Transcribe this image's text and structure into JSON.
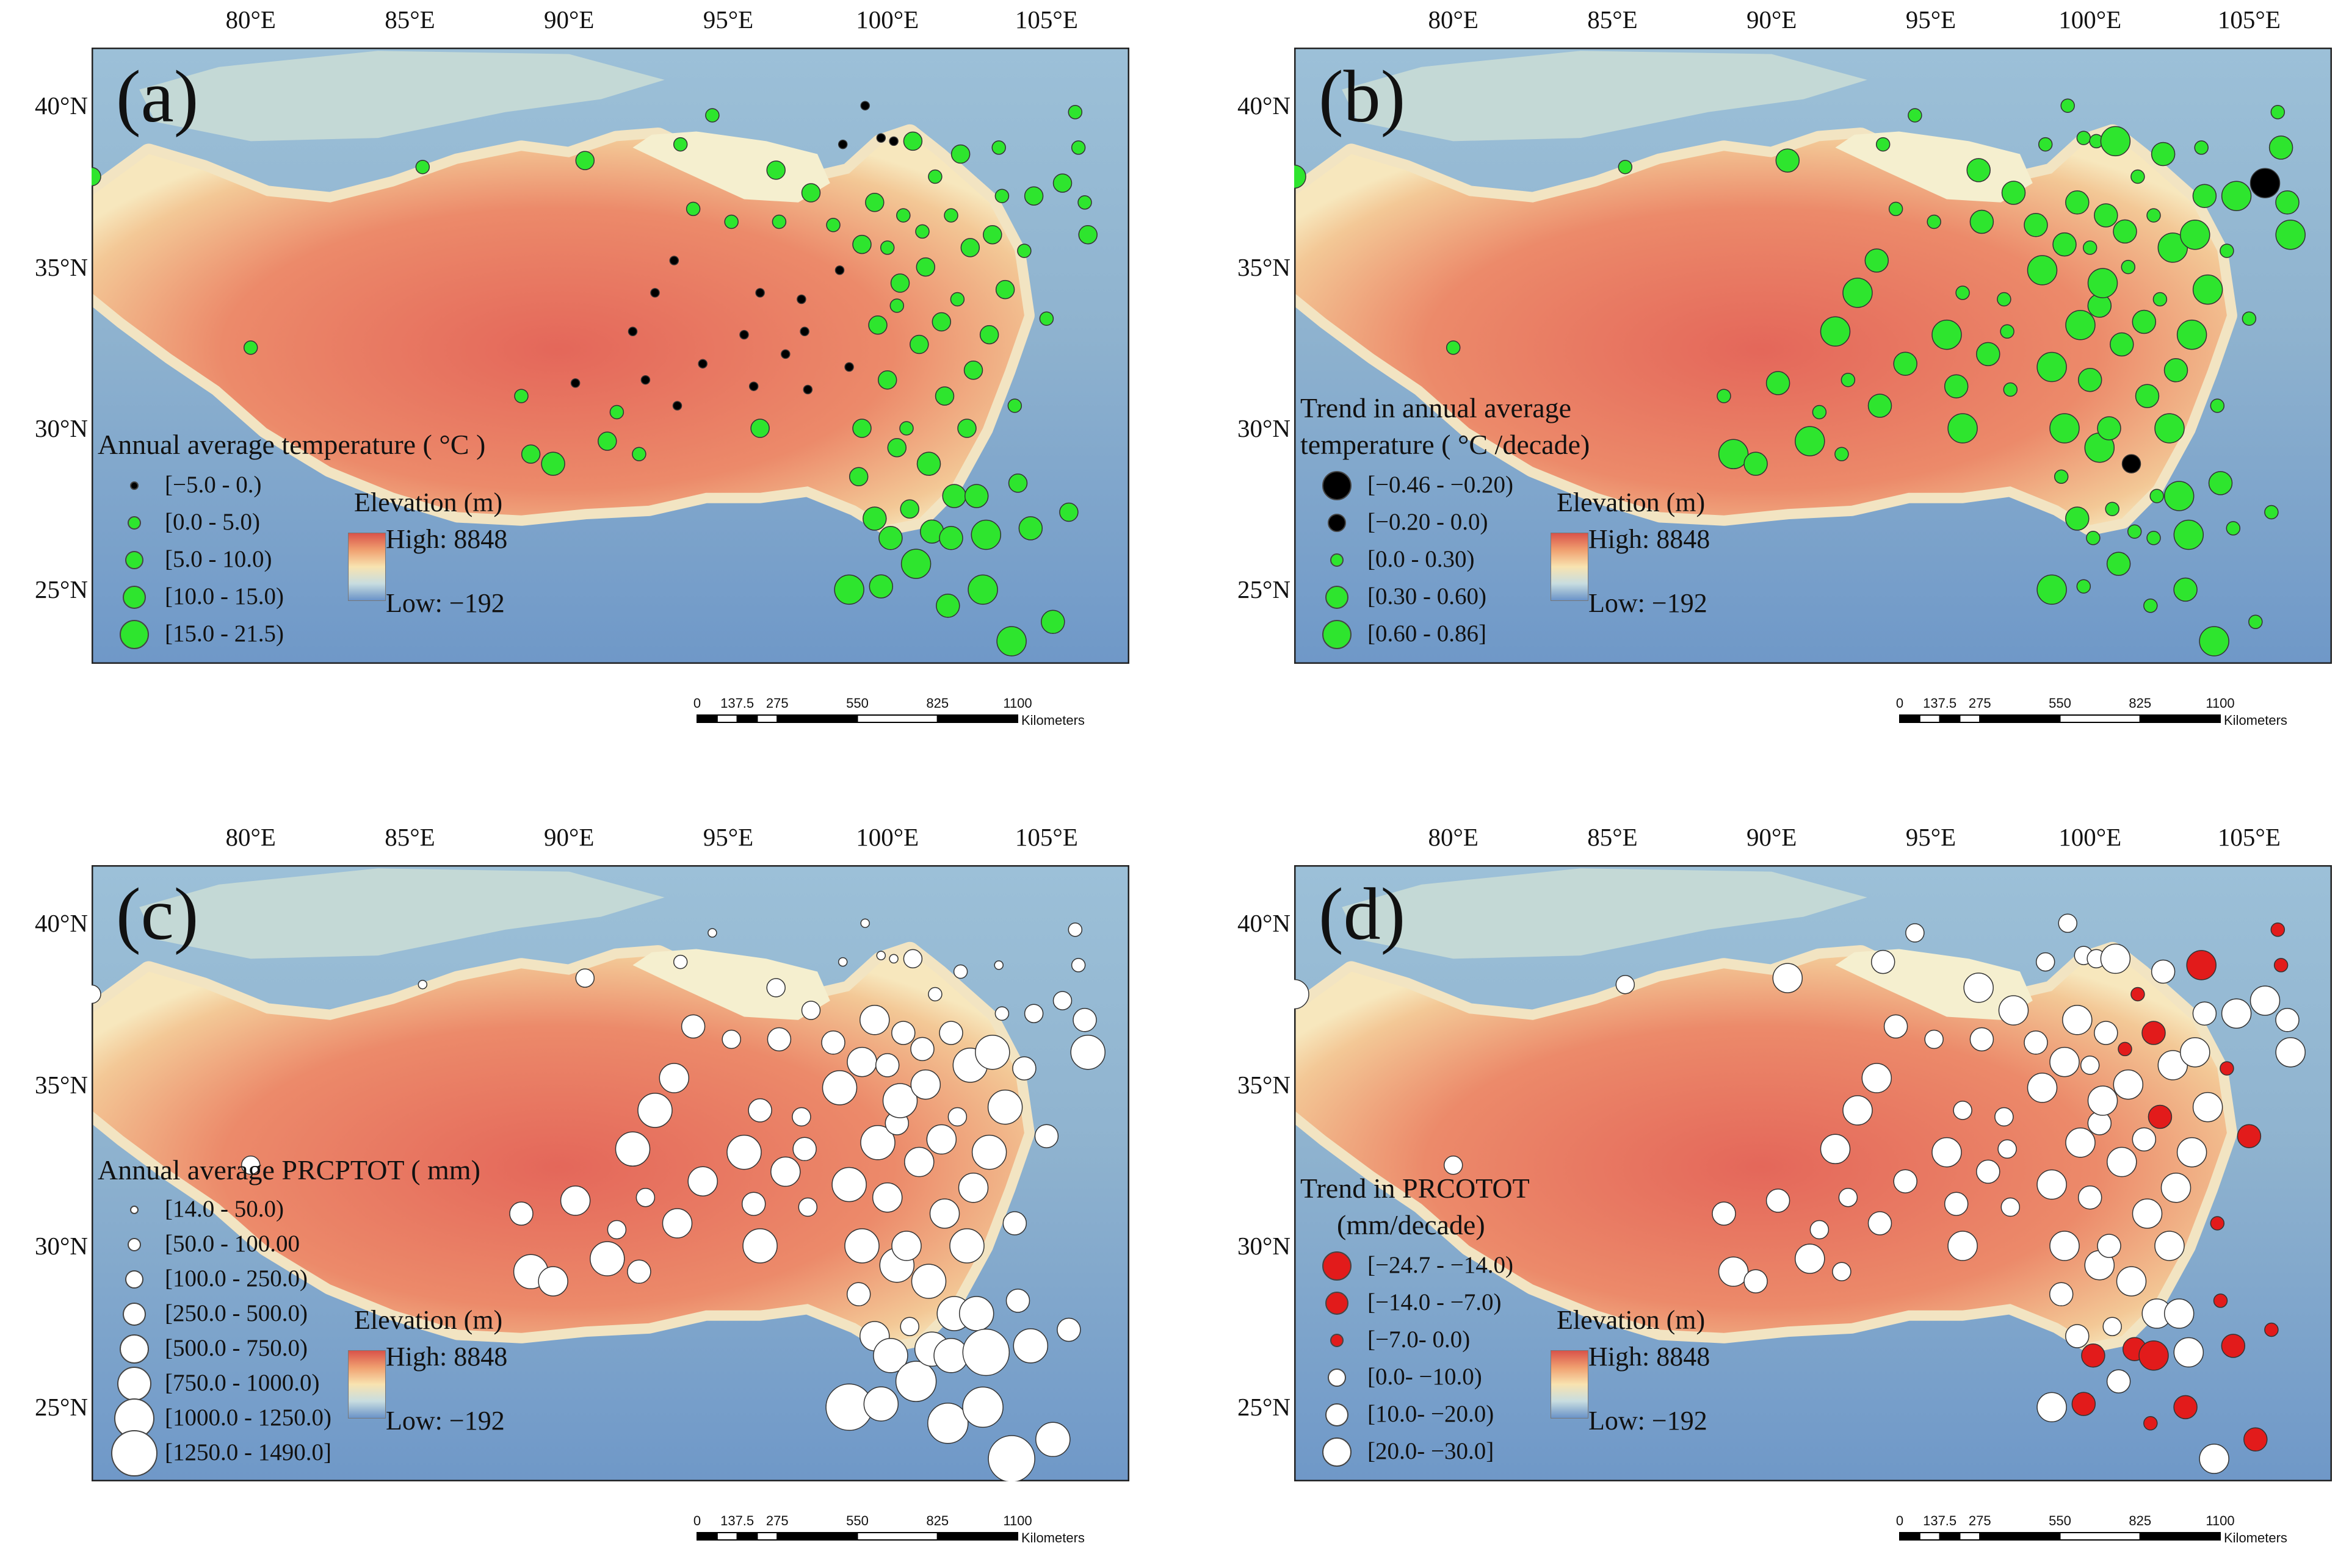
{
  "colors": {
    "green": "#2ee52e",
    "black": "#000000",
    "white": "#ffffff",
    "red": "#e21b1b",
    "elev_high": "#d9534a",
    "elev_low": "#6a93c8"
  },
  "axes": {
    "lon_labels": [
      "80°E",
      "85°E",
      "90°E",
      "95°E",
      "100°E",
      "105°E"
    ],
    "lat_labels": [
      "40°N",
      "35°N",
      "30°N",
      "25°N"
    ]
  },
  "elevation_legend": {
    "title": "Elevation (m)",
    "high": "High: 8848",
    "low": "Low: −192"
  },
  "scalebar": {
    "ticks": [
      "0",
      "137.5",
      "275",
      "550",
      "825",
      "1100"
    ],
    "unit": "Kilometers"
  },
  "panels": [
    {
      "id": "a",
      "label": "(a)",
      "legend_title_lines": [
        "Annual  average temperature ( °C )"
      ],
      "legend_items": [
        {
          "text": "[−5.0 - 0.)",
          "color": "#000000",
          "size": 1
        },
        {
          "text": "[0.0 - 5.0)",
          "color": "#2ee52e",
          "size": 2
        },
        {
          "text": "[5.0 - 10.0)",
          "color": "#2ee52e",
          "size": 3
        },
        {
          "text": "[10.0 - 15.0)",
          "color": "#2ee52e",
          "size": 4
        },
        {
          "text": "[15.0 - 21.5)",
          "color": "#2ee52e",
          "size": 5
        }
      ]
    },
    {
      "id": "b",
      "label": "(b)",
      "legend_title_lines": [
        "Trend  in annual  average",
        "temperature ( °C /decade)"
      ],
      "legend_items": [
        {
          "text": "[−0.46 - −0.20)",
          "color": "#000000",
          "size": 5
        },
        {
          "text": "[−0.20 - 0.0)",
          "color": "#000000",
          "size": 3
        },
        {
          "text": "[0.0 - 0.30)",
          "color": "#2ee52e",
          "size": 2
        },
        {
          "text": "[0.30 - 0.60)",
          "color": "#2ee52e",
          "size": 4
        },
        {
          "text": "[0.60 - 0.86]",
          "color": "#2ee52e",
          "size": 5
        }
      ]
    },
    {
      "id": "c",
      "label": "(c)",
      "legend_title_lines": [
        "Annual  average PRCPTOT ( mm)"
      ],
      "legend_items": [
        {
          "text": "[14.0 - 50.0)",
          "color": "#ffffff",
          "size": 1
        },
        {
          "text": "[50.0 - 100.00",
          "color": "#ffffff",
          "size": 2
        },
        {
          "text": "[100.0 - 250.0)",
          "color": "#ffffff",
          "size": 3
        },
        {
          "text": "[250.0 - 500.0)",
          "color": "#ffffff",
          "size": 4
        },
        {
          "text": "[500.0 - 750.0)",
          "color": "#ffffff",
          "size": 5
        },
        {
          "text": "[750.0 - 1000.0)",
          "color": "#ffffff",
          "size": 6
        },
        {
          "text": "[1000.0 - 1250.0)",
          "color": "#ffffff",
          "size": 7
        },
        {
          "text": "[1250.0 - 1490.0]",
          "color": "#ffffff",
          "size": 8
        }
      ]
    },
    {
      "id": "d",
      "label": "(d)",
      "legend_title_lines": [
        "Trend  in PRCOTOT",
        "(mm/decade)"
      ],
      "legend_items": [
        {
          "text": "[−24.7 - −14.0)",
          "color": "#e21b1b",
          "size": 5
        },
        {
          "text": "[−14.0 - −7.0)",
          "color": "#e21b1b",
          "size": 4
        },
        {
          "text": "[−7.0- 0.0)",
          "color": "#e21b1b",
          "size": 2
        },
        {
          "text": "[0.0- −10.0)",
          "color": "#ffffff",
          "size": 3
        },
        {
          "text": "[10.0- −20.0)",
          "color": "#ffffff",
          "size": 4
        },
        {
          "text": "[20.0- −30.0]",
          "color": "#ffffff",
          "size": 5
        }
      ]
    }
  ],
  "stations": [
    {
      "lon": 75.0,
      "lat": 37.8
    },
    {
      "lon": 80.0,
      "lat": 32.5
    },
    {
      "lon": 85.4,
      "lat": 38.1
    },
    {
      "lon": 88.5,
      "lat": 31.0
    },
    {
      "lon": 88.8,
      "lat": 29.2
    },
    {
      "lon": 89.5,
      "lat": 28.9
    },
    {
      "lon": 90.2,
      "lat": 31.4
    },
    {
      "lon": 90.5,
      "lat": 38.3
    },
    {
      "lon": 91.2,
      "lat": 29.6
    },
    {
      "lon": 91.5,
      "lat": 30.5
    },
    {
      "lon": 92.0,
      "lat": 33.0
    },
    {
      "lon": 92.2,
      "lat": 29.2
    },
    {
      "lon": 92.4,
      "lat": 31.5
    },
    {
      "lon": 92.7,
      "lat": 34.2
    },
    {
      "lon": 93.3,
      "lat": 35.2
    },
    {
      "lon": 93.4,
      "lat": 30.7
    },
    {
      "lon": 93.5,
      "lat": 38.8
    },
    {
      "lon": 93.9,
      "lat": 36.8
    },
    {
      "lon": 94.2,
      "lat": 32.0
    },
    {
      "lon": 94.5,
      "lat": 39.7
    },
    {
      "lon": 95.1,
      "lat": 36.4
    },
    {
      "lon": 95.5,
      "lat": 32.9
    },
    {
      "lon": 95.8,
      "lat": 31.3
    },
    {
      "lon": 96.0,
      "lat": 34.2
    },
    {
      "lon": 96.0,
      "lat": 30.0
    },
    {
      "lon": 96.5,
      "lat": 38.0
    },
    {
      "lon": 96.6,
      "lat": 36.4
    },
    {
      "lon": 96.8,
      "lat": 32.3
    },
    {
      "lon": 97.3,
      "lat": 34.0
    },
    {
      "lon": 97.4,
      "lat": 33.0
    },
    {
      "lon": 97.5,
      "lat": 31.2
    },
    {
      "lon": 97.6,
      "lat": 37.3
    },
    {
      "lon": 98.3,
      "lat": 36.3
    },
    {
      "lon": 98.5,
      "lat": 34.9
    },
    {
      "lon": 98.6,
      "lat": 38.8
    },
    {
      "lon": 98.8,
      "lat": 31.9
    },
    {
      "lon": 98.8,
      "lat": 25.0
    },
    {
      "lon": 99.1,
      "lat": 28.5
    },
    {
      "lon": 99.2,
      "lat": 35.7
    },
    {
      "lon": 99.2,
      "lat": 30.0
    },
    {
      "lon": 99.3,
      "lat": 40.0
    },
    {
      "lon": 99.6,
      "lat": 37.0
    },
    {
      "lon": 99.6,
      "lat": 27.2
    },
    {
      "lon": 99.7,
      "lat": 33.2
    },
    {
      "lon": 99.8,
      "lat": 39.0
    },
    {
      "lon": 99.8,
      "lat": 25.1
    },
    {
      "lon": 100.0,
      "lat": 35.6
    },
    {
      "lon": 100.0,
      "lat": 31.5
    },
    {
      "lon": 100.1,
      "lat": 26.6
    },
    {
      "lon": 100.2,
      "lat": 38.9
    },
    {
      "lon": 100.3,
      "lat": 33.8
    },
    {
      "lon": 100.3,
      "lat": 29.4
    },
    {
      "lon": 100.4,
      "lat": 34.5
    },
    {
      "lon": 100.5,
      "lat": 36.6
    },
    {
      "lon": 100.6,
      "lat": 30.0
    },
    {
      "lon": 100.7,
      "lat": 27.5
    },
    {
      "lon": 100.8,
      "lat": 38.9
    },
    {
      "lon": 100.9,
      "lat": 25.8
    },
    {
      "lon": 101.0,
      "lat": 32.6
    },
    {
      "lon": 101.1,
      "lat": 36.1
    },
    {
      "lon": 101.2,
      "lat": 35.0
    },
    {
      "lon": 101.3,
      "lat": 28.9
    },
    {
      "lon": 101.4,
      "lat": 26.8
    },
    {
      "lon": 101.5,
      "lat": 37.8
    },
    {
      "lon": 101.7,
      "lat": 33.3
    },
    {
      "lon": 101.8,
      "lat": 31.0
    },
    {
      "lon": 101.9,
      "lat": 24.5
    },
    {
      "lon": 102.0,
      "lat": 26.6
    },
    {
      "lon": 102.0,
      "lat": 36.6
    },
    {
      "lon": 102.1,
      "lat": 27.9
    },
    {
      "lon": 102.2,
      "lat": 34.0
    },
    {
      "lon": 102.3,
      "lat": 38.5
    },
    {
      "lon": 102.5,
      "lat": 30.0
    },
    {
      "lon": 102.6,
      "lat": 35.6
    },
    {
      "lon": 102.7,
      "lat": 31.8
    },
    {
      "lon": 102.8,
      "lat": 27.9
    },
    {
      "lon": 103.0,
      "lat": 25.0
    },
    {
      "lon": 103.1,
      "lat": 26.7
    },
    {
      "lon": 103.2,
      "lat": 32.9
    },
    {
      "lon": 103.3,
      "lat": 36.0
    },
    {
      "lon": 103.5,
      "lat": 38.7
    },
    {
      "lon": 103.6,
      "lat": 37.2
    },
    {
      "lon": 103.7,
      "lat": 34.3
    },
    {
      "lon": 103.9,
      "lat": 23.4
    },
    {
      "lon": 104.0,
      "lat": 30.7
    },
    {
      "lon": 104.1,
      "lat": 28.3
    },
    {
      "lon": 104.3,
      "lat": 35.5
    },
    {
      "lon": 104.5,
      "lat": 26.9
    },
    {
      "lon": 104.6,
      "lat": 37.2
    },
    {
      "lon": 105.0,
      "lat": 33.4
    },
    {
      "lon": 105.2,
      "lat": 24.0
    },
    {
      "lon": 105.5,
      "lat": 37.6
    },
    {
      "lon": 105.7,
      "lat": 27.4
    },
    {
      "lon": 105.9,
      "lat": 39.8
    },
    {
      "lon": 106.0,
      "lat": 38.7
    },
    {
      "lon": 106.3,
      "lat": 36.0
    },
    {
      "lon": 106.2,
      "lat": 37.0
    }
  ]
}
